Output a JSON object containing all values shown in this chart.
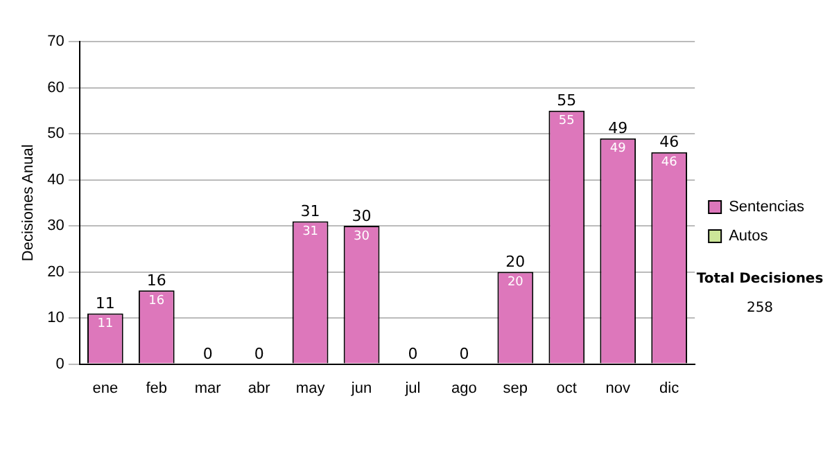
{
  "chart_data": {
    "type": "bar",
    "ylabel": "Decisiones Anual",
    "categories": [
      "ene",
      "feb",
      "mar",
      "abr",
      "may",
      "jun",
      "jul",
      "ago",
      "sep",
      "oct",
      "nov",
      "dic"
    ],
    "series": [
      {
        "name": "Sentencias",
        "color": "#dd77bb",
        "values": [
          11,
          16,
          0,
          0,
          31,
          30,
          0,
          0,
          20,
          55,
          49,
          46
        ],
        "value_labels": [
          "11",
          "16",
          null,
          null,
          "31",
          "30",
          null,
          null,
          "20",
          "55",
          "49",
          "46"
        ]
      },
      {
        "name": "Autos",
        "color": "#cce699",
        "values": [
          0,
          0,
          0,
          0,
          0,
          0,
          0,
          0,
          0,
          0,
          0,
          0
        ]
      }
    ],
    "stacked": true,
    "totals": [
      "11",
      "16",
      "0",
      "0",
      "31",
      "30",
      "0",
      "0",
      "20",
      "55",
      "49",
      "46"
    ],
    "ylim": [
      0,
      70
    ],
    "yticks": [
      0,
      10,
      20,
      30,
      40,
      50,
      60,
      70
    ],
    "grid": "y",
    "legend": "right",
    "annotations": [
      "Total Decisiones",
      "258"
    ]
  }
}
